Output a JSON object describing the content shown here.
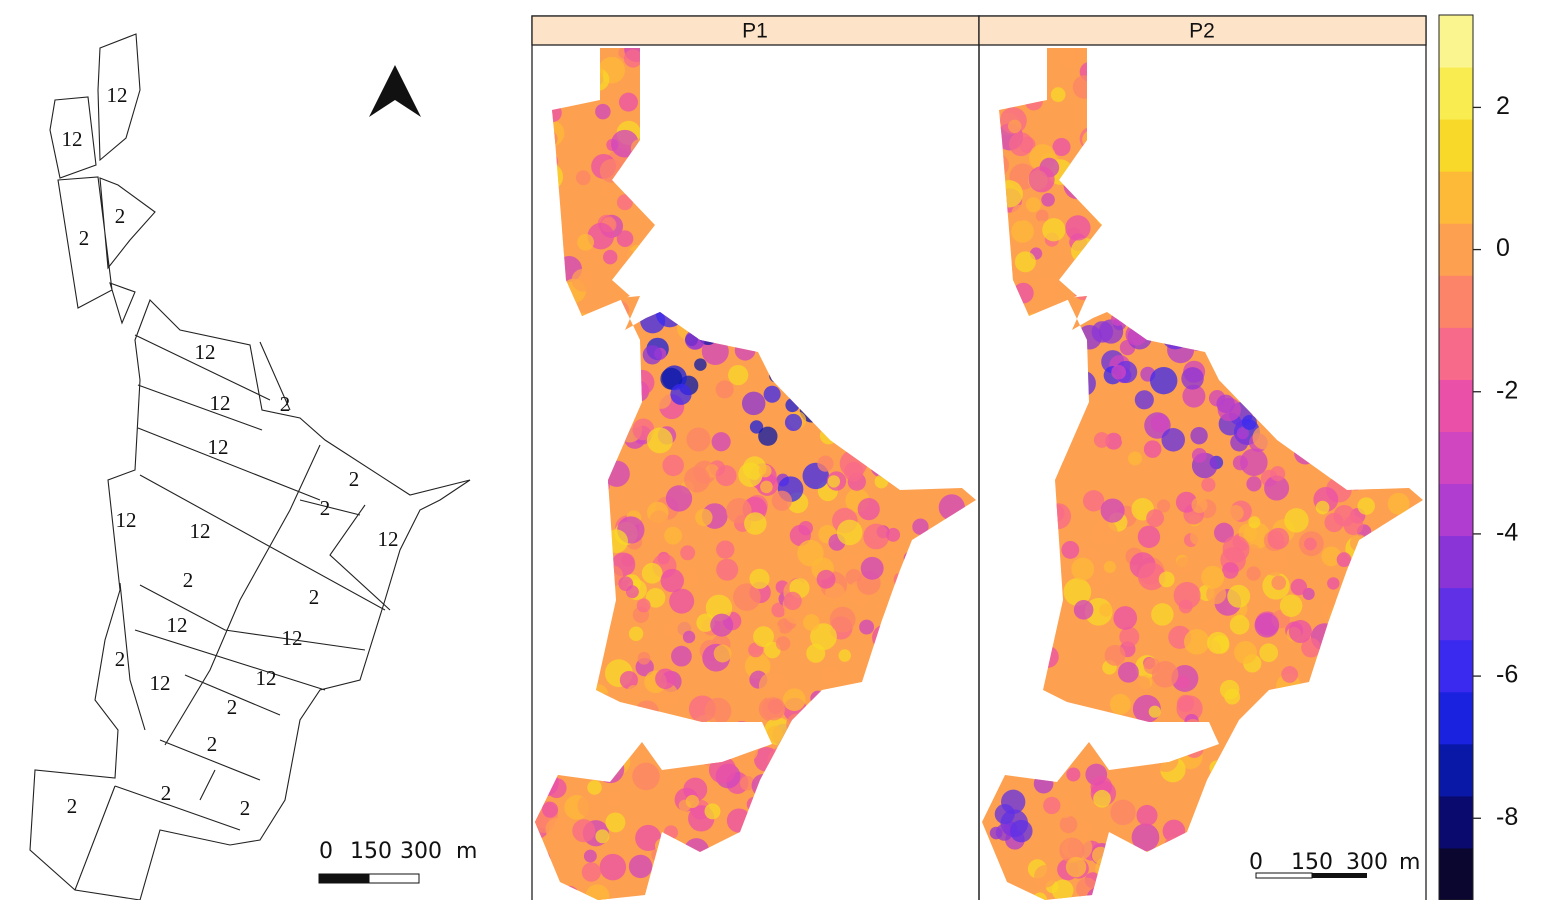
{
  "field_map": {
    "fields": [
      "12",
      "12",
      "2",
      "2",
      "12",
      "12",
      "2",
      "12",
      "2",
      "2",
      "12",
      "12",
      "12",
      "2",
      "2",
      "12",
      "12",
      "2",
      "12",
      "12",
      "2",
      "2",
      "2",
      "2",
      "2"
    ],
    "scale_bar": [
      "0",
      "150",
      "300",
      "m"
    ]
  },
  "panels": [
    {
      "title": "P1"
    },
    {
      "title": "P2"
    }
  ],
  "raster_scale_bar": [
    "0",
    "150",
    "300",
    "m"
  ],
  "colorbar": {
    "lim": [
      -9.15,
      3.3
    ],
    "ticks": [
      2,
      0,
      -2,
      -4,
      -6,
      -8
    ],
    "colors": [
      "#0b0630",
      "#0a0a6e",
      "#0a18a8",
      "#1a22e0",
      "#3a2af0",
      "#6030e6",
      "#8a34d8",
      "#b03cd0",
      "#d046c0",
      "#ea50a8",
      "#f86a8a",
      "#fc8468",
      "#fda050",
      "#fdba38",
      "#f8d828",
      "#f8ec50",
      "#fbf590"
    ]
  }
}
